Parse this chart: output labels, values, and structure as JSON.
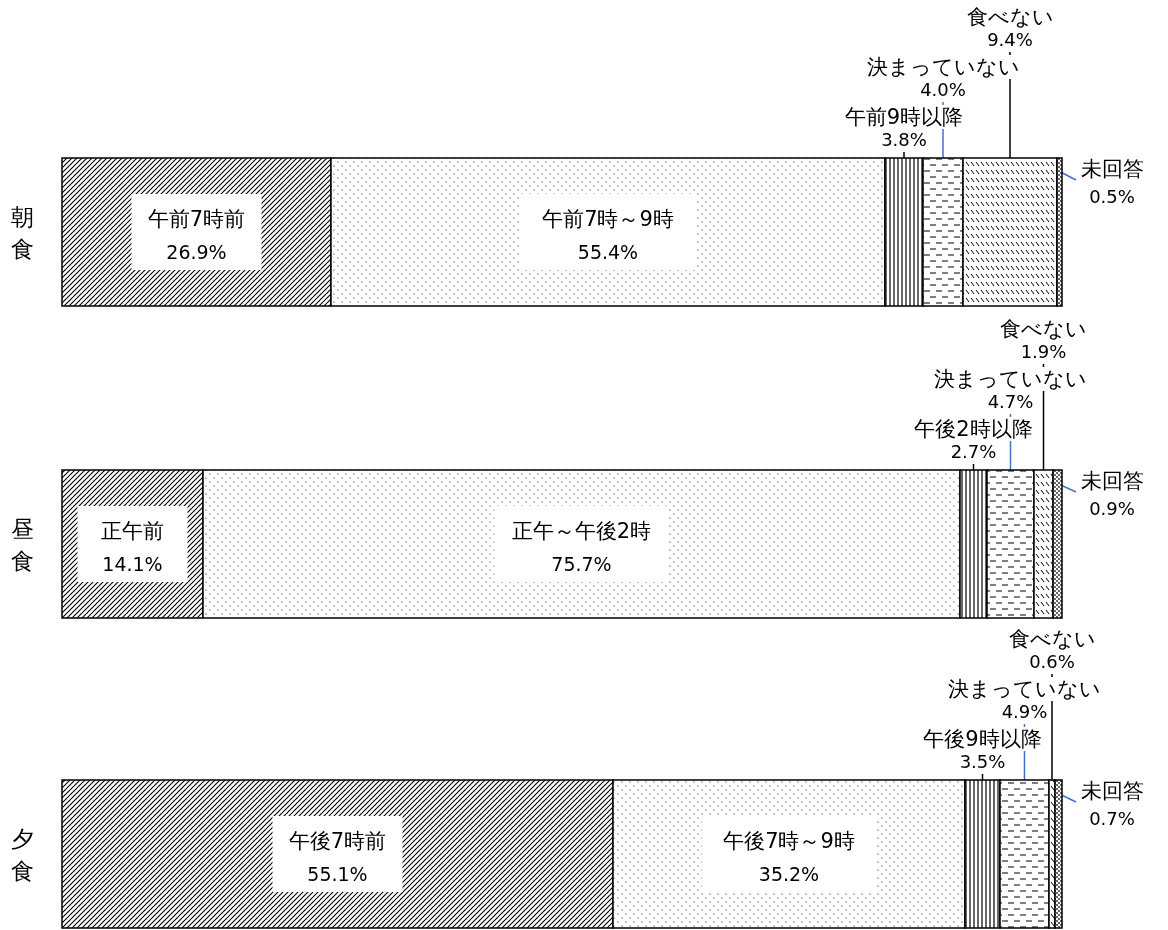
{
  "chart_data": [
    {
      "type": "bar",
      "orientation": "horizontal",
      "stacked": true,
      "categories": [
        "朝食"
      ],
      "xlim": [
        0,
        100
      ],
      "tick_labels": false,
      "series": [
        {
          "name": "午前7時前",
          "color": "#000000",
          "values": [
            26.9
          ],
          "value_labels": [
            "26.9%"
          ]
        },
        {
          "name": "午前7時～9時",
          "color": "#000000",
          "values": [
            55.4
          ],
          "value_labels": [
            "55.4%"
          ]
        },
        {
          "name": "午前9時以降",
          "color": "#000000",
          "values": [
            3.8
          ],
          "value_labels": [
            "3.8%"
          ]
        },
        {
          "name": "決まっていない",
          "color": "#000000",
          "values": [
            4.0
          ],
          "value_labels": [
            "4.0%"
          ]
        },
        {
          "name": "食べない",
          "color": "#000000",
          "values": [
            9.4
          ],
          "value_labels": [
            "9.4%"
          ]
        },
        {
          "name": "未回答",
          "color": "#000000",
          "values": [
            0.5
          ],
          "value_labels": [
            "0.5%"
          ]
        }
      ]
    },
    {
      "type": "bar",
      "orientation": "horizontal",
      "stacked": true,
      "categories": [
        "昼食"
      ],
      "xlim": [
        0,
        100
      ],
      "tick_labels": false,
      "series": [
        {
          "name": "正午前",
          "color": "#000000",
          "values": [
            14.1
          ],
          "value_labels": [
            "14.1%"
          ]
        },
        {
          "name": "正午～午後2時",
          "color": "#000000",
          "values": [
            75.7
          ],
          "value_labels": [
            "75.7%"
          ]
        },
        {
          "name": "午後2時以降",
          "color": "#000000",
          "values": [
            2.7
          ],
          "value_labels": [
            "2.7%"
          ]
        },
        {
          "name": "決まっていない",
          "color": "#000000",
          "values": [
            4.7
          ],
          "value_labels": [
            "4.7%"
          ]
        },
        {
          "name": "食べない",
          "color": "#000000",
          "values": [
            1.9
          ],
          "value_labels": [
            "1.9%"
          ]
        },
        {
          "name": "未回答",
          "color": "#000000",
          "values": [
            0.9
          ],
          "value_labels": [
            "0.9%"
          ]
        }
      ]
    },
    {
      "type": "bar",
      "orientation": "horizontal",
      "stacked": true,
      "categories": [
        "夕食"
      ],
      "xlim": [
        0,
        100
      ],
      "tick_labels": false,
      "series": [
        {
          "name": "午後7時前",
          "color": "#000000",
          "values": [
            55.1
          ],
          "value_labels": [
            "55.1%"
          ]
        },
        {
          "name": "午後7時～9時",
          "color": "#000000",
          "values": [
            35.2
          ],
          "value_labels": [
            "35.2%"
          ]
        },
        {
          "name": "午後9時以降",
          "color": "#000000",
          "values": [
            3.5
          ],
          "value_labels": [
            "3.5%"
          ]
        },
        {
          "name": "決まっていない",
          "color": "#000000",
          "values": [
            4.9
          ],
          "value_labels": [
            "4.9%"
          ]
        },
        {
          "name": "食べない",
          "color": "#000000",
          "values": [
            0.6
          ],
          "value_labels": [
            "0.6%"
          ]
        },
        {
          "name": "未回答",
          "color": "#000000",
          "values": [
            0.7
          ],
          "value_labels": [
            "0.7%"
          ]
        }
      ]
    }
  ]
}
